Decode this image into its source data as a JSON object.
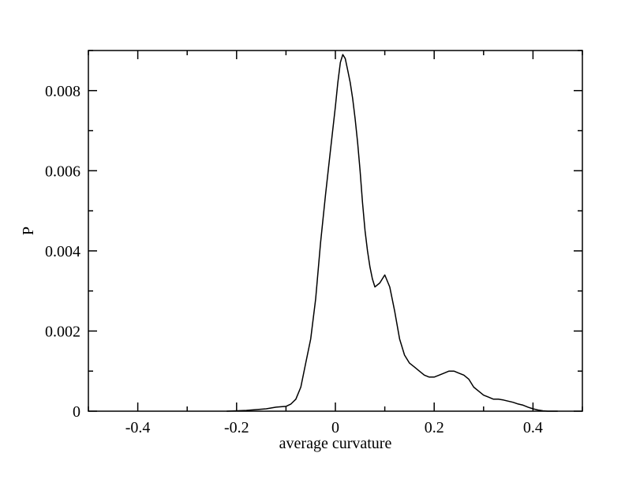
{
  "chart_data": {
    "type": "line",
    "title": "",
    "xlabel": "average curvature",
    "ylabel": "P",
    "xlim": [
      -0.5,
      0.5
    ],
    "ylim": [
      0,
      0.009
    ],
    "xticks": [
      -0.4,
      -0.2,
      0,
      0.2,
      0.4
    ],
    "xtick_labels": [
      "-0.4",
      "-0.2",
      "0",
      "0.2",
      "0.4"
    ],
    "yticks": [
      0,
      0.002,
      0.004,
      0.006,
      0.008
    ],
    "ytick_labels": [
      "0",
      "0.002",
      "0.004",
      "0.006",
      "0.008"
    ],
    "grid": false,
    "line_color": "#000000",
    "series": [
      {
        "x": [
          -0.22,
          -0.2,
          -0.18,
          -0.16,
          -0.14,
          -0.12,
          -0.1,
          -0.09,
          -0.08,
          -0.07,
          -0.06,
          -0.05,
          -0.04,
          -0.03,
          -0.02,
          -0.01,
          0.0,
          0.005,
          0.01,
          0.015,
          0.02,
          0.025,
          0.03,
          0.035,
          0.04,
          0.045,
          0.05,
          0.055,
          0.06,
          0.065,
          0.07,
          0.075,
          0.08,
          0.09,
          0.1,
          0.11,
          0.12,
          0.13,
          0.14,
          0.15,
          0.16,
          0.17,
          0.18,
          0.19,
          0.2,
          0.21,
          0.22,
          0.23,
          0.24,
          0.25,
          0.26,
          0.27,
          0.28,
          0.29,
          0.3,
          0.31,
          0.32,
          0.33,
          0.34,
          0.35,
          0.36,
          0.37,
          0.38,
          0.39,
          0.4,
          0.41,
          0.42,
          0.43,
          0.44,
          0.45
        ],
        "y": [
          0.0,
          1e-05,
          2e-05,
          4e-05,
          6e-05,
          0.0001,
          0.00012,
          0.00018,
          0.0003,
          0.0006,
          0.0012,
          0.0018,
          0.0028,
          0.0042,
          0.0054,
          0.0065,
          0.0076,
          0.0082,
          0.0087,
          0.0089,
          0.0088,
          0.0085,
          0.0082,
          0.0078,
          0.0073,
          0.0067,
          0.006,
          0.0052,
          0.0045,
          0.004,
          0.0036,
          0.0033,
          0.0031,
          0.0032,
          0.0034,
          0.0031,
          0.0025,
          0.0018,
          0.0014,
          0.0012,
          0.0011,
          0.001,
          0.0009,
          0.00085,
          0.00085,
          0.0009,
          0.00095,
          0.001,
          0.001,
          0.00095,
          0.0009,
          0.0008,
          0.0006,
          0.0005,
          0.0004,
          0.00035,
          0.0003,
          0.0003,
          0.00028,
          0.00025,
          0.00022,
          0.00018,
          0.00015,
          0.0001,
          6e-05,
          3e-05,
          1e-05,
          0.0,
          0.0,
          0.0
        ]
      }
    ]
  }
}
